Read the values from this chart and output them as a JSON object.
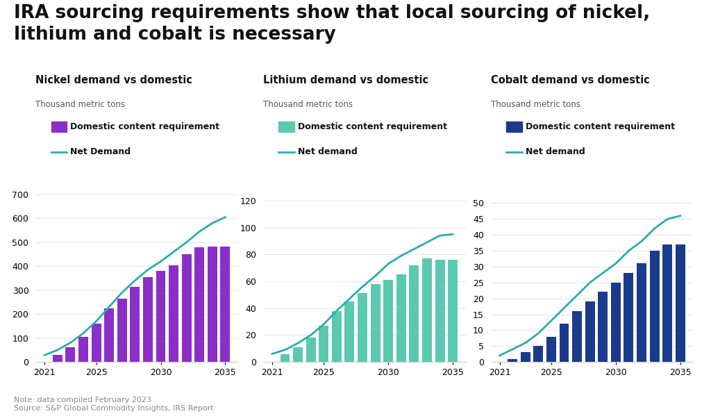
{
  "title": "IRA sourcing requirements show that local sourcing of nickel,\nlithium and cobalt is necessary",
  "title_fontsize": 19,
  "background_color": "#ffffff",
  "note": "Note: data compiled February 2023\nSource: S&P Global Commodity Insights, IRS Report",
  "charts": [
    {
      "title": "Nickel demand vs domestic",
      "subtitle": "Thousand metric tons",
      "bar_color": "#8B2FC9",
      "line_color": "#2AACB0",
      "bar_label": "Domestic content requirement",
      "line_label": "Net Demand",
      "years": [
        2021,
        2022,
        2023,
        2024,
        2025,
        2026,
        2027,
        2028,
        2029,
        2030,
        2031,
        2032,
        2033,
        2034,
        2035
      ],
      "bar_values": [
        0,
        30,
        62,
        105,
        160,
        225,
        265,
        315,
        355,
        380,
        405,
        450,
        480,
        483,
        483
      ],
      "line_values": [
        28,
        50,
        80,
        120,
        170,
        230,
        290,
        340,
        385,
        420,
        460,
        500,
        545,
        580,
        605
      ],
      "ylim": [
        0,
        730
      ],
      "yticks": [
        0,
        100,
        200,
        300,
        400,
        500,
        600,
        700
      ]
    },
    {
      "title": "Lithium demand vs domestic",
      "subtitle": "Thousand metric tons",
      "bar_color": "#5BC8B0",
      "line_color": "#2AACB0",
      "bar_label": "Domestic content requirement",
      "line_label": "Net demand",
      "years": [
        2021,
        2022,
        2023,
        2024,
        2025,
        2026,
        2027,
        2028,
        2029,
        2030,
        2031,
        2032,
        2033,
        2034,
        2035
      ],
      "bar_values": [
        0,
        6,
        11,
        18,
        27,
        38,
        45,
        51,
        58,
        61,
        65,
        72,
        77,
        76,
        76
      ],
      "line_values": [
        6,
        9,
        14,
        20,
        28,
        38,
        47,
        56,
        64,
        73,
        79,
        84,
        89,
        94,
        95
      ],
      "ylim": [
        0,
        130
      ],
      "yticks": [
        0,
        20,
        40,
        60,
        80,
        100,
        120
      ]
    },
    {
      "title": "Cobalt demand vs domestic",
      "subtitle": "Thousand metric tons",
      "bar_color": "#1A3A8C",
      "line_color": "#2AACB0",
      "bar_label": "Domestic content requirement",
      "line_label": "Net demand",
      "years": [
        2021,
        2022,
        2023,
        2024,
        2025,
        2026,
        2027,
        2028,
        2029,
        2030,
        2031,
        2032,
        2033,
        2034,
        2035
      ],
      "bar_values": [
        0,
        1,
        3,
        5,
        8,
        12,
        16,
        19,
        22,
        25,
        28,
        31,
        35,
        37,
        37
      ],
      "line_values": [
        2,
        4,
        6,
        9,
        13,
        17,
        21,
        25,
        28,
        31,
        35,
        38,
        42,
        45,
        46
      ],
      "ylim": [
        0,
        55
      ],
      "yticks": [
        0,
        5,
        10,
        15,
        20,
        25,
        30,
        35,
        40,
        45,
        50
      ]
    }
  ]
}
